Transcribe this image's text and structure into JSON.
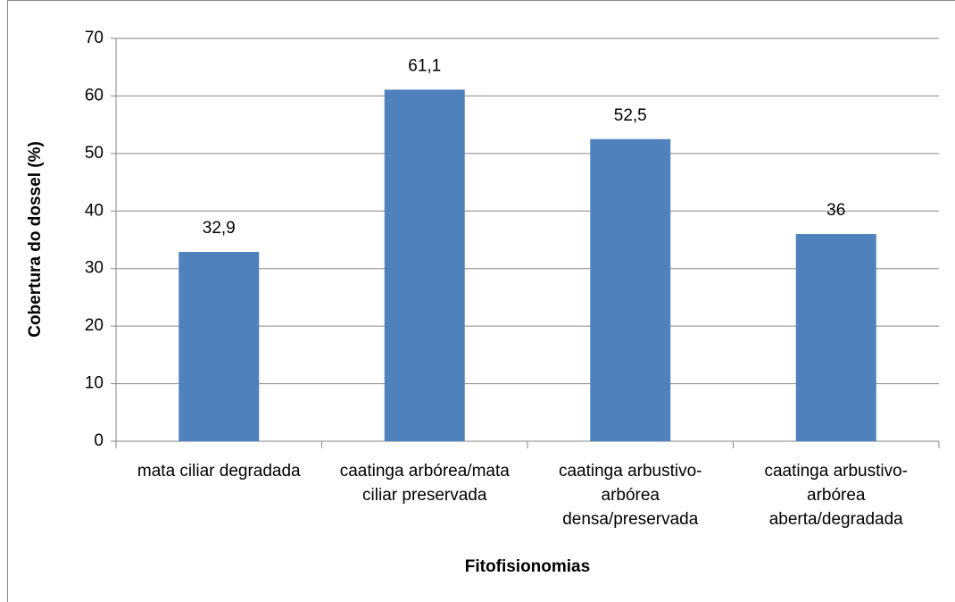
{
  "chart_data": {
    "type": "bar",
    "x_label": "Fitofisionomias",
    "y_label": "Cobertura do dossel (%)",
    "categories": [
      "mata ciliar degradada",
      "caatinga arbórea/mata ciliar preservada",
      "caatinga arbustivo-arbórea densa/preservada",
      "caatinga arbustivo-arbórea aberta/degradada"
    ],
    "values": [
      32.9,
      61.1,
      52.5,
      36
    ],
    "value_labels": [
      "32,9",
      "61,1",
      "52,5",
      "36"
    ],
    "color": "#4f81bd",
    "ylim": [
      0,
      70
    ],
    "yticks": [
      0,
      10,
      20,
      30,
      40,
      50,
      60,
      70
    ],
    "grid": true
  }
}
